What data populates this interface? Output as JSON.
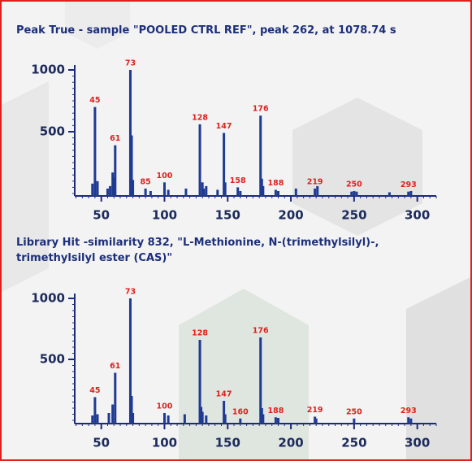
{
  "chart_data": [
    {
      "type": "bar",
      "title": "Peak True - sample \"POOLED CTRL REF\", peak 262, at 1078.74 s",
      "labeled_peaks": {
        "x": [
          45,
          61,
          73,
          85,
          100,
          128,
          147,
          158,
          176,
          188,
          219,
          250,
          293
        ],
        "values": [
          700,
          390,
          1000,
          40,
          90,
          560,
          490,
          50,
          630,
          30,
          40,
          20,
          15
        ]
      },
      "unlabeled_peaks": {
        "x": [
          43,
          47,
          55,
          57,
          59,
          60,
          74,
          75,
          89,
          103,
          117,
          130,
          131,
          133,
          142,
          148,
          160,
          177,
          178,
          190,
          204,
          221,
          248,
          252,
          278,
          295
        ],
        "values": [
          80,
          100,
          40,
          60,
          170,
          130,
          470,
          110,
          20,
          30,
          40,
          90,
          40,
          60,
          30,
          90,
          20,
          120,
          60,
          20,
          40,
          60,
          15,
          15,
          10,
          20
        ]
      },
      "color": "#1f3a93",
      "label_color": "#e0201f",
      "xlim": [
        29,
        315
      ],
      "ylim": [
        0,
        1000
      ],
      "xticks": [
        50,
        100,
        150,
        200,
        250,
        300
      ],
      "yticks": [
        500,
        1000
      ],
      "minor_ticks": {
        "x": 5,
        "y": 50
      }
    },
    {
      "type": "bar",
      "title": "Library Hit -similarity 832, \"L-Methionine, N-(trimethylsilyl)-, trimethylsilyl ester (CAS)\"",
      "labeled_peaks": {
        "x": [
          45,
          61,
          73,
          100,
          128,
          147,
          160,
          176,
          188,
          219,
          250,
          293
        ],
        "values": [
          190,
          390,
          1000,
          60,
          660,
          160,
          15,
          680,
          25,
          30,
          15,
          25
        ]
      },
      "unlabeled_peaks": {
        "x": [
          43,
          47,
          56,
          59,
          74,
          75,
          103,
          116,
          129,
          130,
          133,
          148,
          177,
          178,
          190,
          220,
          295
        ],
        "values": [
          40,
          50,
          60,
          130,
          200,
          60,
          40,
          50,
          110,
          70,
          40,
          50,
          100,
          50,
          20,
          15,
          15
        ]
      },
      "color": "#1f3a93",
      "label_color": "#e0201f",
      "xlim": [
        29,
        315
      ],
      "ylim": [
        0,
        1000
      ],
      "xticks": [
        50,
        100,
        150,
        200,
        250,
        300
      ],
      "yticks": [
        500,
        1000
      ],
      "minor_ticks": {
        "x": 5,
        "y": 50
      }
    }
  ]
}
